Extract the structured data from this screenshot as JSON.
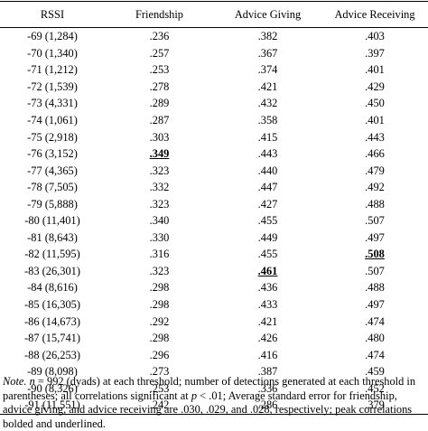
{
  "table": {
    "headers": [
      "RSSI",
      "Friendship",
      "Advice Giving",
      "Advice Receiving"
    ],
    "rows": [
      {
        "rssi": "-69 (1,284)",
        "friendship": ".236",
        "advice_giving": ".382",
        "advice_receiving": ".403"
      },
      {
        "rssi": "-70 (1,340)",
        "friendship": ".257",
        "advice_giving": ".367",
        "advice_receiving": ".397"
      },
      {
        "rssi": "-71 (1,212)",
        "friendship": ".253",
        "advice_giving": ".374",
        "advice_receiving": ".401"
      },
      {
        "rssi": "-72 (1,539)",
        "friendship": ".278",
        "advice_giving": ".421",
        "advice_receiving": ".429"
      },
      {
        "rssi": "-73 (4,331)",
        "friendship": ".289",
        "advice_giving": ".432",
        "advice_receiving": ".450"
      },
      {
        "rssi": "-74 (1,061)",
        "friendship": ".287",
        "advice_giving": ".358",
        "advice_receiving": ".401"
      },
      {
        "rssi": "-75 (2,918)",
        "friendship": ".303",
        "advice_giving": ".415",
        "advice_receiving": ".443"
      },
      {
        "rssi": "-76 (3,152)",
        "friendship": ".349",
        "advice_giving": ".443",
        "advice_receiving": ".466"
      },
      {
        "rssi": "-77 (4,365)",
        "friendship": ".323",
        "advice_giving": ".440",
        "advice_receiving": ".479"
      },
      {
        "rssi": "-78 (7,505)",
        "friendship": ".332",
        "advice_giving": ".447",
        "advice_receiving": ".492"
      },
      {
        "rssi": "-79 (5,888)",
        "friendship": ".323",
        "advice_giving": ".427",
        "advice_receiving": ".488"
      },
      {
        "rssi": "-80 (11,401)",
        "friendship": ".340",
        "advice_giving": ".455",
        "advice_receiving": ".507"
      },
      {
        "rssi": "-81 (8,643)",
        "friendship": ".330",
        "advice_giving": ".449",
        "advice_receiving": ".497"
      },
      {
        "rssi": "-82 (11,595)",
        "friendship": ".316",
        "advice_giving": ".455",
        "advice_receiving": ".508"
      },
      {
        "rssi": "-83 (26,301)",
        "friendship": ".323",
        "advice_giving": ".461",
        "advice_receiving": ".507"
      },
      {
        "rssi": "-84 (8,616)",
        "friendship": ".298",
        "advice_giving": ".436",
        "advice_receiving": ".488"
      },
      {
        "rssi": "-85 (16,305)",
        "friendship": ".298",
        "advice_giving": ".433",
        "advice_receiving": ".497"
      },
      {
        "rssi": "-86 (14,673)",
        "friendship": ".292",
        "advice_giving": ".421",
        "advice_receiving": ".474"
      },
      {
        "rssi": "-87 (15,741)",
        "friendship": ".298",
        "advice_giving": ".426",
        "advice_receiving": ".480"
      },
      {
        "rssi": "-88 (26,253)",
        "friendship": ".296",
        "advice_giving": ".416",
        "advice_receiving": ".474"
      },
      {
        "rssi": "-89 (8,098)",
        "friendship": ".273",
        "advice_giving": ".387",
        "advice_receiving": ".459"
      },
      {
        "rssi": "-90 (8,326)",
        "friendship": ".253",
        "advice_giving": ".336",
        "advice_receiving": ".452"
      },
      {
        "rssi": "-91 (11,551)",
        "friendship": ".242",
        "advice_giving": ".286",
        "advice_receiving": ".379"
      }
    ],
    "peaks": {
      "friendship": "-76 (3,152)",
      "advice_giving": "-83 (26,301)",
      "advice_receiving": "-82 (11,595)"
    }
  },
  "note": {
    "label": "Note.",
    "n_symbol": "n",
    "text_1": " = 992 (dyads) at each threshold; number of detections generated at each threshold in parentheses; all correlations significant at ",
    "p_symbol": "p",
    "text_2": " < .01; Average standard error for friendship, advice giving, and advice receiving are .030, .029, and .028, respectively; peak correlations bolded and underlined."
  }
}
